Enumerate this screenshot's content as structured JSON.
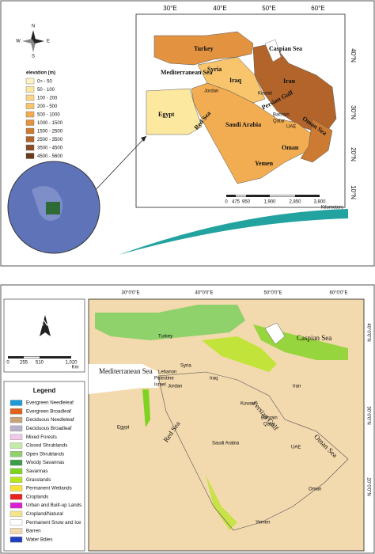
{
  "top_map": {
    "lon_labels": [
      "30°E",
      "40°E",
      "50°E",
      "60°E"
    ],
    "lat_labels": [
      "40°N",
      "30°N",
      "20°N",
      "10°N"
    ],
    "compass": {
      "north": "N",
      "south": "S",
      "east": "E",
      "west": "W"
    },
    "legend": {
      "title": "elevation (m)",
      "items": [
        {
          "label": "0> - 50",
          "color": "#fff3c4"
        },
        {
          "label": "50 - 100",
          "color": "#fde8a0"
        },
        {
          "label": "100 - 200",
          "color": "#fcd98a"
        },
        {
          "label": "200 - 500",
          "color": "#f8c56c"
        },
        {
          "label": "500 - 1000",
          "color": "#f2ad52"
        },
        {
          "label": "1000 - 1500",
          "color": "#e39340"
        },
        {
          "label": "1500 - 2500",
          "color": "#cd7a33"
        },
        {
          "label": "2500 - 3500",
          "color": "#b2642a"
        },
        {
          "label": "3500 - 4500",
          "color": "#8d4d22"
        },
        {
          "label": "4500 - 5600",
          "color": "#6b3a1a"
        }
      ]
    },
    "places": [
      "Turkey",
      "Caspian Sea",
      "Mediterranean Sea",
      "Syria",
      "Iraq",
      "Iran",
      "Egypt",
      "Red Sea",
      "Saudi Arabia",
      "Persian Gulf",
      "Oman Sea",
      "Oman",
      "Yemen",
      "Jordan",
      "Kuwait",
      "Bahrain",
      "Qatar",
      "UAE"
    ],
    "scale": {
      "ticks": [
        "0",
        "475",
        "950",
        "1,900",
        "2,850",
        "3,800"
      ],
      "unit": "Kilometers"
    }
  },
  "bottom_map": {
    "lon_labels": [
      "30°0'0\"E",
      "40°0'0\"E",
      "50°0'0\"E",
      "60°0'0\"E"
    ],
    "lat_labels": [
      "40°0'0\"N",
      "30°0'0\"N",
      "20°0'0\"N"
    ],
    "north": "N",
    "scale": {
      "ticks": [
        "0",
        "255",
        "510",
        "1,020"
      ],
      "unit": "Km"
    },
    "legend": {
      "title": "Legend",
      "items": [
        {
          "label": "Evergreen Needleleaf",
          "color": "#1e9bd7"
        },
        {
          "label": "Evergreen Broadleaf",
          "color": "#e0601c"
        },
        {
          "label": "Deciduous Needleleaf",
          "color": "#c9a37a"
        },
        {
          "label": "Deciduous Broadleaf",
          "color": "#b8b0c8"
        },
        {
          "label": "Mixed Forests",
          "color": "#f0c8e8"
        },
        {
          "label": "Closed Shrublands",
          "color": "#c6e9a8"
        },
        {
          "label": "Open Shrublands",
          "color": "#8fd16a"
        },
        {
          "label": "Woody Savannas",
          "color": "#3b9c4a"
        },
        {
          "label": "Savannas",
          "color": "#7ed321"
        },
        {
          "label": "Grasslands",
          "color": "#b5e61d"
        },
        {
          "label": "Permanent Wetlands",
          "color": "#f7e23a"
        },
        {
          "label": "Croplands",
          "color": "#e8231f"
        },
        {
          "label": "Urban and Built-up Lands",
          "color": "#d81fd1"
        },
        {
          "label": "Cropland/Natural",
          "color": "#f3e58c"
        },
        {
          "label": "Permanent Snow and Ice",
          "color": "#ffffff"
        },
        {
          "label": "Barren",
          "color": "#f3d9ae"
        },
        {
          "label": "Water Bdies",
          "color": "#2040c0"
        }
      ]
    },
    "places": [
      "Turkey",
      "Caspian Sea",
      "Mediterranean Sea",
      "Syria",
      "Lebanon",
      "Palestine",
      "Israel",
      "Jordan",
      "Iraq",
      "Iran",
      "Kuwait",
      "Bahrain",
      "Qatar",
      "Egypt",
      "Red Sea",
      "Saudi Arabia",
      "Persian Gulf",
      "UAE",
      "Oman Sea",
      "Oman",
      "Yemen"
    ]
  }
}
